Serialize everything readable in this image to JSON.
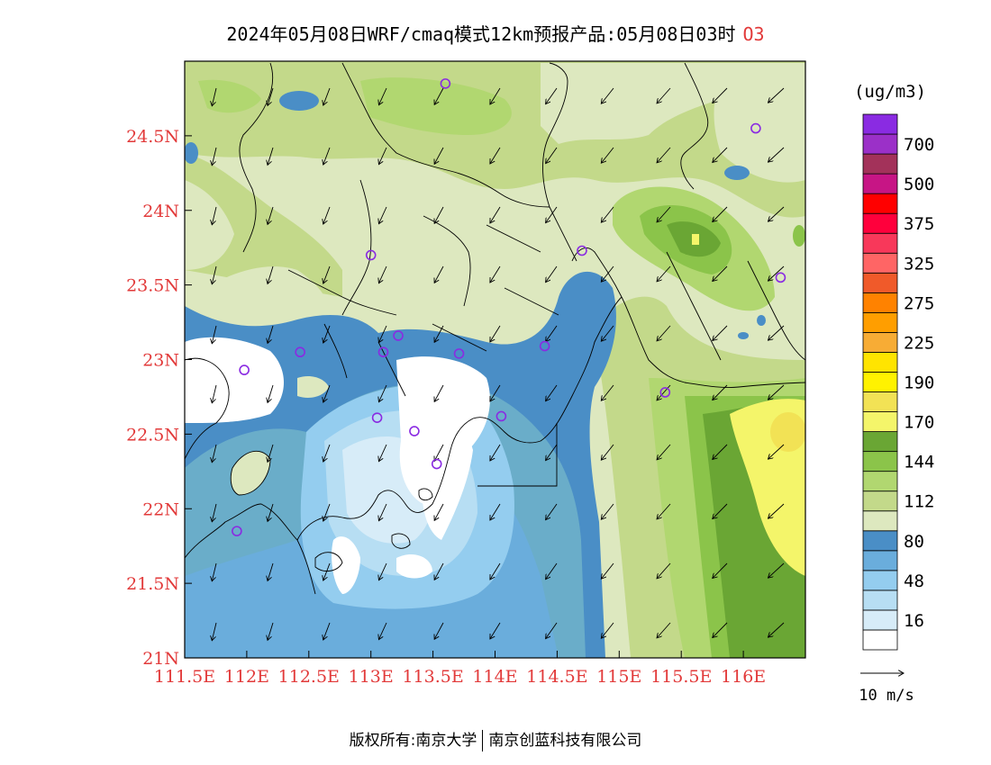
{
  "title": {
    "main": "2024年05月08日WRF/cmaq模式12km预报产品:05月08日03时",
    "species": "O3",
    "species_color": "#e23a3a"
  },
  "axes": {
    "lon_range": [
      111.5,
      116.5
    ],
    "lat_range": [
      21.0,
      25.0
    ],
    "x_ticks": [
      {
        "value": 111.5,
        "label": "111.5E"
      },
      {
        "value": 112.0,
        "label": "112E"
      },
      {
        "value": 112.5,
        "label": "112.5E"
      },
      {
        "value": 113.0,
        "label": "113E"
      },
      {
        "value": 113.5,
        "label": "113.5E"
      },
      {
        "value": 114.0,
        "label": "114E"
      },
      {
        "value": 114.5,
        "label": "114.5E"
      },
      {
        "value": 115.0,
        "label": "115E"
      },
      {
        "value": 115.5,
        "label": "115.5E"
      },
      {
        "value": 116.0,
        "label": "116E"
      }
    ],
    "y_ticks": [
      {
        "value": 21.0,
        "label": "21N"
      },
      {
        "value": 21.5,
        "label": "21.5N"
      },
      {
        "value": 22.0,
        "label": "22N"
      },
      {
        "value": 22.5,
        "label": "22.5N"
      },
      {
        "value": 23.0,
        "label": "23N"
      },
      {
        "value": 23.5,
        "label": "23.5N"
      },
      {
        "value": 24.0,
        "label": "24N"
      },
      {
        "value": 24.5,
        "label": "24.5N"
      }
    ],
    "tick_label_color": "#e23a3a"
  },
  "legend": {
    "unit": "(ug/m3)",
    "bins": [
      {
        "color": "#ffffff",
        "label": ""
      },
      {
        "color": "#d7ecf8",
        "label": "16"
      },
      {
        "color": "#b7def3",
        "label": ""
      },
      {
        "color": "#94cdef",
        "label": "48"
      },
      {
        "color": "#6aaddc",
        "label": ""
      },
      {
        "color": "#4a8ec6",
        "label": "80"
      },
      {
        "color": "#dde8bf",
        "label": ""
      },
      {
        "color": "#c3d98a",
        "label": "112"
      },
      {
        "color": "#b1d770",
        "label": ""
      },
      {
        "color": "#8bc44a",
        "label": "144"
      },
      {
        "color": "#6aa634",
        "label": ""
      },
      {
        "color": "#f4f56a",
        "label": "170"
      },
      {
        "color": "#f2e255",
        "label": ""
      },
      {
        "color": "#fff200",
        "label": "190"
      },
      {
        "color": "#ffe400",
        "label": ""
      },
      {
        "color": "#f7ac35",
        "label": "225"
      },
      {
        "color": "#ff9e00",
        "label": ""
      },
      {
        "color": "#ff8200",
        "label": "275"
      },
      {
        "color": "#f05a2a",
        "label": ""
      },
      {
        "color": "#ff6565",
        "label": "325"
      },
      {
        "color": "#f8385a",
        "label": ""
      },
      {
        "color": "#ff003c",
        "label": "375"
      },
      {
        "color": "#ff0000",
        "label": ""
      },
      {
        "color": "#c71585",
        "label": "500"
      },
      {
        "color": "#a3325a",
        "label": ""
      },
      {
        "color": "#9b30c8",
        "label": "700"
      },
      {
        "color": "#8a2be2",
        "label": ""
      }
    ]
  },
  "wind_scale": {
    "label": "10 m/s"
  },
  "stations": [
    {
      "lon": 113.6,
      "lat": 24.85
    },
    {
      "lon": 116.1,
      "lat": 24.55
    },
    {
      "lon": 113.0,
      "lat": 23.7
    },
    {
      "lon": 114.7,
      "lat": 23.73
    },
    {
      "lon": 116.3,
      "lat": 23.55
    },
    {
      "lon": 112.43,
      "lat": 23.05
    },
    {
      "lon": 113.1,
      "lat": 23.05
    },
    {
      "lon": 113.22,
      "lat": 23.16
    },
    {
      "lon": 113.71,
      "lat": 23.04
    },
    {
      "lon": 114.4,
      "lat": 23.09
    },
    {
      "lon": 111.98,
      "lat": 22.93
    },
    {
      "lon": 115.37,
      "lat": 22.78
    },
    {
      "lon": 113.05,
      "lat": 22.61
    },
    {
      "lon": 113.35,
      "lat": 22.52
    },
    {
      "lon": 114.05,
      "lat": 22.62
    },
    {
      "lon": 113.53,
      "lat": 22.3
    },
    {
      "lon": 111.92,
      "lat": 21.85
    }
  ],
  "footer": {
    "left": "版权所有:南京大学",
    "right": "南京创蓝科技有限公司"
  }
}
